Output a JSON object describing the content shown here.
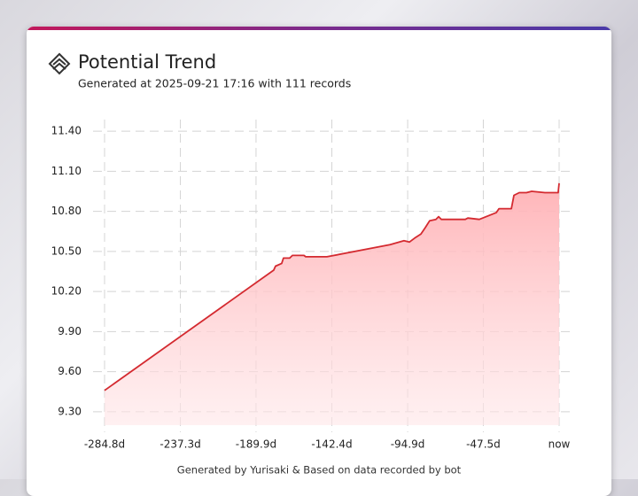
{
  "chart_data": {
    "type": "line",
    "title": "Potential Trend",
    "subtitle": "Generated at 2025-09-21 17:16 with 111 records",
    "footer": "Generated by Yurisaki & Based on data recorded by bot",
    "color": "#d42a30",
    "grid": true,
    "x": [
      -284.8,
      -178.8,
      -177.7,
      -173.8,
      -172.7,
      -168.8,
      -167.1,
      -159.9,
      -158.8,
      -145.5,
      -106.0,
      -97.2,
      -93.8,
      -90.5,
      -86.6,
      -83.8,
      -81.1,
      -77.2,
      -75.5,
      -73.8,
      -58.8,
      -57.2,
      -50.0,
      -39.4,
      -37.7,
      -29.9,
      -28.3,
      -25.0,
      -20.5,
      -17.2,
      -8.9,
      -0.6,
      0
    ],
    "values": [
      9.46,
      10.36,
      10.39,
      10.41,
      10.45,
      10.45,
      10.47,
      10.47,
      10.46,
      10.46,
      10.55,
      10.58,
      10.57,
      10.6,
      10.63,
      10.68,
      10.73,
      10.74,
      10.76,
      10.74,
      10.74,
      10.75,
      10.74,
      10.79,
      10.82,
      10.82,
      10.92,
      10.94,
      10.94,
      10.95,
      10.94,
      10.94,
      11.01
    ],
    "xlim": [
      -284.8,
      0
    ],
    "ylim": [
      9.2,
      11.5
    ],
    "xticks": [
      {
        "value": -284.8,
        "label": "-284.8d"
      },
      {
        "value": -237.3,
        "label": "-237.3d"
      },
      {
        "value": -189.9,
        "label": "-189.9d"
      },
      {
        "value": -142.4,
        "label": "-142.4d"
      },
      {
        "value": -94.9,
        "label": "-94.9d"
      },
      {
        "value": -47.5,
        "label": "-47.5d"
      },
      {
        "value": 0,
        "label": "now"
      }
    ],
    "yticks": [
      {
        "value": 11.4,
        "label": "11.40"
      },
      {
        "value": 11.1,
        "label": "11.10"
      },
      {
        "value": 10.8,
        "label": "10.80"
      },
      {
        "value": 10.5,
        "label": "10.50"
      },
      {
        "value": 10.2,
        "label": "10.20"
      },
      {
        "value": 9.9,
        "label": "9.90"
      },
      {
        "value": 9.6,
        "label": "9.60"
      },
      {
        "value": 9.3,
        "label": "9.30"
      }
    ]
  }
}
